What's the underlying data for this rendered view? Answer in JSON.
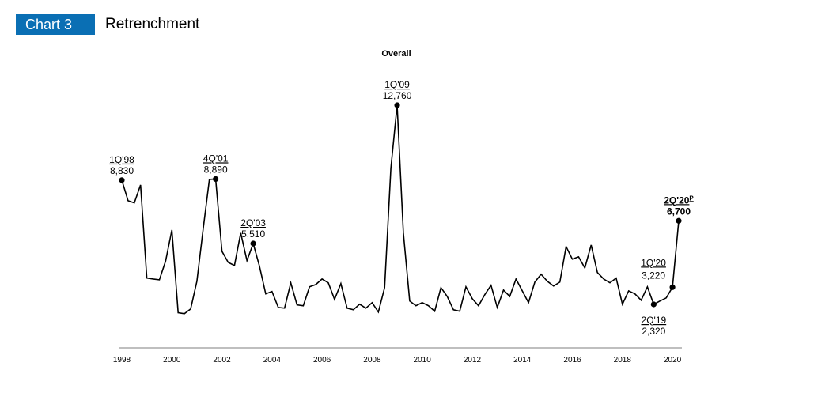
{
  "header": {
    "chart_number": "Chart 3",
    "title": "Retrenchment",
    "accent_color": "#0a6fb4"
  },
  "chart_data": {
    "type": "line",
    "title": "Overall",
    "xlabel": "",
    "ylabel": "",
    "ylim": [
      0,
      13000
    ],
    "x_start": "1Q'98",
    "frequency": "quarterly",
    "x_tick_labels": [
      "1998",
      "2000",
      "2002",
      "2004",
      "2006",
      "2008",
      "2010",
      "2012",
      "2014",
      "2016",
      "2018",
      "2020"
    ],
    "series": [
      {
        "name": "Overall",
        "values": [
          8830,
          7750,
          7640,
          8580,
          3700,
          3650,
          3610,
          4600,
          6220,
          1880,
          1830,
          2080,
          3530,
          6260,
          8870,
          8890,
          5100,
          4520,
          4360,
          6060,
          4610,
          5510,
          4320,
          2870,
          3000,
          2160,
          2120,
          3450,
          2290,
          2250,
          3240,
          3360,
          3650,
          3450,
          2580,
          3410,
          2120,
          2040,
          2330,
          2120,
          2410,
          1920,
          3200,
          9450,
          12760,
          6060,
          2500,
          2250,
          2410,
          2250,
          1960,
          3200,
          2740,
          2040,
          1960,
          3240,
          2620,
          2250,
          2830,
          3320,
          2160,
          3070,
          2740,
          3650,
          3030,
          2410,
          3490,
          3900,
          3530,
          3280,
          3490,
          5350,
          4690,
          4810,
          4230,
          5430,
          3990,
          3650,
          3450,
          3700,
          2330,
          3030,
          2870,
          2540,
          3240,
          2320,
          2500,
          2660,
          3220,
          6700
        ]
      }
    ],
    "annotations": [
      {
        "index": 0,
        "label": "1Q'98",
        "value_label": "8,830",
        "position": "above"
      },
      {
        "index": 15,
        "label": "4Q'01",
        "value_label": "8,890",
        "position": "above"
      },
      {
        "index": 21,
        "label": "2Q'03",
        "value_label": "5,510",
        "position": "above"
      },
      {
        "index": 44,
        "label": "1Q'09",
        "value_label": "12,760",
        "position": "above"
      },
      {
        "index": 85,
        "label": "2Q'19",
        "value_label": "2,320",
        "position": "below"
      },
      {
        "index": 88,
        "label": "1Q'20",
        "value_label": "3,220",
        "position": "above-left"
      },
      {
        "index": 89,
        "label": "2Q'20",
        "superscript": "P",
        "value_label": "6,700",
        "position": "above",
        "bold": true
      }
    ],
    "grid": false,
    "legend": "none"
  }
}
